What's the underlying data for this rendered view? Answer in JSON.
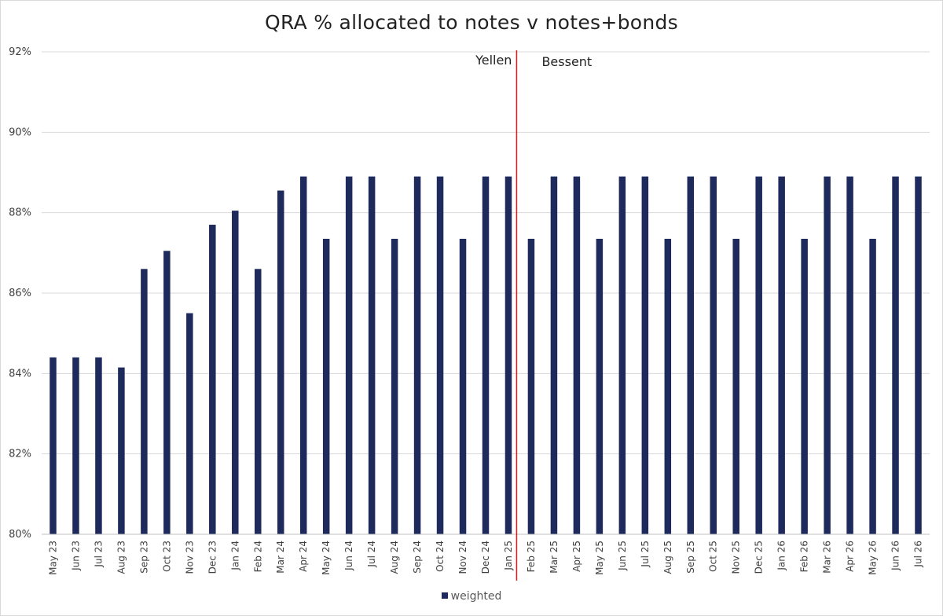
{
  "chart_data": {
    "type": "bar",
    "title": "QRA % allocated to notes v notes+bonds",
    "xlabel": "",
    "ylabel": "",
    "ylim": [
      80,
      92
    ],
    "yticks": [
      80,
      82,
      84,
      86,
      88,
      90,
      92
    ],
    "ytick_suffix": "%",
    "grid": true,
    "legend_position": "bottom",
    "categories": [
      "May 23",
      "Jun 23",
      "Jul 23",
      "Aug 23",
      "Sep 23",
      "Oct 23",
      "Nov 23",
      "Dec 23",
      "Jan 24",
      "Feb 24",
      "Mar 24",
      "Apr 24",
      "May 24",
      "Jun 24",
      "Jul 24",
      "Aug 24",
      "Sep 24",
      "Oct 24",
      "Nov 24",
      "Dec 24",
      "Jan 25",
      "Feb 25",
      "Mar 25",
      "Apr 25",
      "May 25",
      "Jun 25",
      "Jul 25",
      "Aug 25",
      "Sep 25",
      "Oct 25",
      "Nov 25",
      "Dec 25",
      "Jan 26",
      "Feb 26",
      "Mar 26",
      "Apr 26",
      "May 26",
      "Jun 26",
      "Jul 26"
    ],
    "series": [
      {
        "name": "weighted",
        "color": "#1f2a5c",
        "values": [
          84.4,
          84.4,
          84.4,
          84.15,
          86.6,
          87.05,
          85.5,
          87.7,
          88.05,
          86.6,
          88.55,
          88.9,
          87.35,
          88.9,
          88.9,
          87.35,
          88.9,
          88.9,
          87.35,
          88.9,
          88.9,
          87.35,
          88.9,
          88.9,
          87.35,
          88.9,
          88.9,
          87.35,
          88.9,
          88.9,
          87.35,
          88.9,
          88.9,
          87.35,
          88.9,
          88.9,
          87.35,
          88.9,
          88.9
        ]
      }
    ],
    "annotations": [
      {
        "text": "Yellen",
        "side": "left"
      },
      {
        "text": "Bessent",
        "side": "right"
      }
    ],
    "divider": {
      "after_category": "Jan 25",
      "color": "#e31a1c"
    }
  }
}
